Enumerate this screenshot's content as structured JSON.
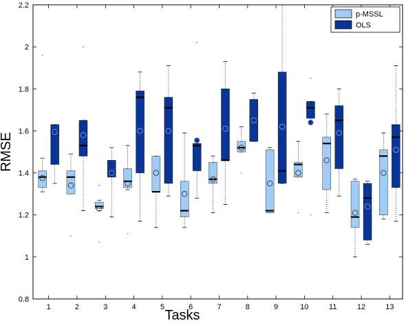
{
  "chart_data": {
    "type": "boxplot",
    "xlabel": "Tasks",
    "ylabel": "RMSE",
    "categories": [
      "1",
      "2",
      "3",
      "4",
      "5",
      "6",
      "7",
      "8",
      "9",
      "10",
      "11",
      "12",
      "13"
    ],
    "ylim": [
      0.8,
      2.2
    ],
    "yticks": [
      "0.8",
      "1",
      "1.2",
      "1.4",
      "1.6",
      "1.8",
      "2",
      "2.2"
    ],
    "grid": false,
    "legend_position": "top-right",
    "series": [
      {
        "name": "p-MSSL",
        "color": "#9fcdf7",
        "boxes": [
          {
            "q1": 1.33,
            "median": 1.38,
            "q3": 1.41,
            "whisker_low": 1.31,
            "whisker_high": 1.47,
            "mean": 1.375,
            "outliers": [
              1.96
            ]
          },
          {
            "q1": 1.3,
            "median": 1.38,
            "q3": 1.41,
            "whisker_low": 1.3,
            "whisker_high": 1.49,
            "mean": 1.34,
            "outliers": [
              1.1
            ]
          },
          {
            "q1": 1.23,
            "median": 1.24,
            "q3": 1.26,
            "whisker_low": 1.22,
            "whisker_high": 1.27,
            "mean": 1.23,
            "outliers": [
              1.07,
              1.34
            ]
          },
          {
            "q1": 1.33,
            "median": 1.36,
            "q3": 1.42,
            "whisker_low": 1.32,
            "whisker_high": 1.53,
            "mean": 1.35,
            "outliers": [
              1.11
            ]
          },
          {
            "q1": 1.31,
            "median": 1.31,
            "q3": 1.48,
            "whisker_low": 1.14,
            "whisker_high": 1.48,
            "mean": 1.4,
            "outliers": []
          },
          {
            "q1": 1.19,
            "median": 1.22,
            "q3": 1.36,
            "whisker_low": 1.14,
            "whisker_high": 1.59,
            "mean": 1.3,
            "outliers": []
          },
          {
            "q1": 1.35,
            "median": 1.37,
            "q3": 1.45,
            "whisker_low": 1.21,
            "whisker_high": 1.48,
            "mean": 1.37,
            "outliers": []
          },
          {
            "q1": 1.5,
            "median": 1.52,
            "q3": 1.55,
            "whisker_low": 1.5,
            "whisker_high": 1.62,
            "mean": 1.52,
            "outliers": [
              1.4
            ]
          },
          {
            "q1": 1.21,
            "median": 1.22,
            "q3": 1.51,
            "whisker_low": 1.21,
            "whisker_high": 1.52,
            "mean": 1.35,
            "outliers": []
          },
          {
            "q1": 1.38,
            "median": 1.44,
            "q3": 1.45,
            "whisker_low": 1.38,
            "whisker_high": 1.55,
            "mean": 1.4,
            "outliers": [
              1.21
            ]
          },
          {
            "q1": 1.32,
            "median": 1.54,
            "q3": 1.57,
            "whisker_low": 1.21,
            "whisker_high": 1.68,
            "mean": 1.46,
            "outliers": []
          },
          {
            "q1": 1.14,
            "median": 1.19,
            "q3": 1.36,
            "whisker_low": 1.0,
            "whisker_high": 1.37,
            "mean": 1.21,
            "outliers": []
          },
          {
            "q1": 1.2,
            "median": 1.48,
            "q3": 1.51,
            "whisker_low": 1.18,
            "whisker_high": 1.59,
            "mean": 1.4,
            "outliers": []
          }
        ]
      },
      {
        "name": "OLS",
        "color": "#0a3598",
        "boxes": [
          {
            "q1": 1.44,
            "median": 1.6,
            "q3": 1.63,
            "whisker_low": 1.35,
            "whisker_high": 1.63,
            "mean": 1.595,
            "outliers": []
          },
          {
            "q1": 1.48,
            "median": 1.53,
            "q3": 1.65,
            "whisker_low": 1.22,
            "whisker_high": 1.65,
            "mean": 1.58,
            "outliers": [
              2.0
            ]
          },
          {
            "q1": 1.38,
            "median": 1.4,
            "q3": 1.46,
            "whisker_low": 1.19,
            "whisker_high": 1.52,
            "mean": 1.4,
            "outliers": []
          },
          {
            "q1": 1.4,
            "median": 1.76,
            "q3": 1.79,
            "whisker_low": 1.17,
            "whisker_high": 1.88,
            "mean": 1.6,
            "outliers": []
          },
          {
            "q1": 1.35,
            "median": 1.71,
            "q3": 1.76,
            "whisker_low": 1.29,
            "whisker_high": 1.91,
            "mean": 1.6,
            "outliers": []
          },
          {
            "q1": 1.41,
            "median": 1.53,
            "q3": 1.54,
            "whisker_low": 1.28,
            "whisker_high": 1.54,
            "mean": 1.555,
            "outliers": [
              2.02
            ]
          },
          {
            "q1": 1.46,
            "median": 1.46,
            "q3": 1.8,
            "whisker_low": 1.25,
            "whisker_high": 1.93,
            "mean": 1.61,
            "outliers": []
          },
          {
            "q1": 1.55,
            "median": 1.65,
            "q3": 1.75,
            "whisker_low": 1.55,
            "whisker_high": 1.78,
            "mean": 1.65,
            "outliers": []
          },
          {
            "q1": 1.35,
            "median": 1.41,
            "q3": 1.88,
            "whisker_low": 1.35,
            "whisker_high": 2.2,
            "mean": 1.62,
            "outliers": []
          },
          {
            "q1": 1.66,
            "median": 1.71,
            "q3": 1.74,
            "whisker_low": 1.66,
            "whisker_high": 1.74,
            "mean": 1.64,
            "outliers": [
              1.85,
              1.2
            ]
          },
          {
            "q1": 1.42,
            "median": 1.65,
            "q3": 1.72,
            "whisker_low": 1.29,
            "whisker_high": 1.8,
            "mean": 1.59,
            "outliers": []
          },
          {
            "q1": 1.08,
            "median": 1.28,
            "q3": 1.35,
            "whisker_low": 1.06,
            "whisker_high": 1.36,
            "mean": 1.24,
            "outliers": []
          },
          {
            "q1": 1.33,
            "median": 1.57,
            "q3": 1.63,
            "whisker_low": 1.17,
            "whisker_high": 1.91,
            "mean": 1.51,
            "outliers": []
          }
        ]
      }
    ]
  }
}
